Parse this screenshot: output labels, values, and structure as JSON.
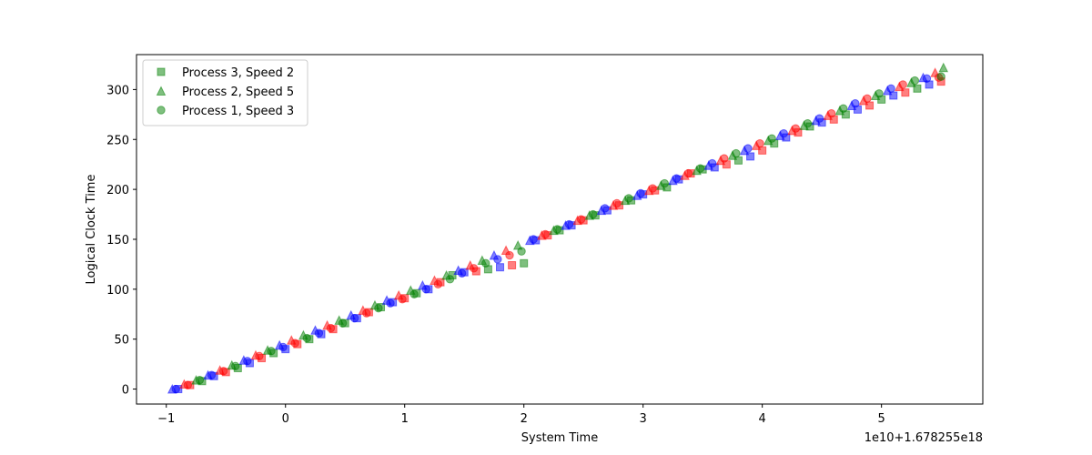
{
  "chart_data": {
    "type": "scatter",
    "title": "",
    "xlabel": "System Time",
    "ylabel": "Logical Clock Time",
    "x_offset_label": "1e10+1.678255e18",
    "xlim": [
      -1.25,
      5.85
    ],
    "ylim": [
      -15,
      335
    ],
    "xticks": [
      -1,
      0,
      1,
      2,
      3,
      4,
      5
    ],
    "xtick_labels": [
      "−1",
      "0",
      "1",
      "2",
      "3",
      "4",
      "5"
    ],
    "yticks": [
      0,
      50,
      100,
      150,
      200,
      250,
      300
    ],
    "ytick_labels": [
      "0",
      "50",
      "100",
      "150",
      "200",
      "250",
      "300"
    ],
    "grid": false,
    "legend_position": "upper-left",
    "series": [
      {
        "name": "Process 3, Speed 2",
        "marker": "square",
        "colors": [
          "#0000ff",
          "#ff0000",
          "#008000"
        ],
        "x": [
          -0.9,
          -0.8,
          -0.7,
          -0.6,
          -0.5,
          -0.4,
          -0.3,
          -0.2,
          -0.1,
          0.0,
          0.1,
          0.2,
          0.3,
          0.4,
          0.5,
          0.6,
          0.7,
          0.8,
          0.9,
          1.0,
          1.1,
          1.2,
          1.3,
          1.4,
          1.5,
          1.6,
          1.7,
          1.8,
          1.9,
          2.0,
          2.1,
          2.2,
          2.3,
          2.4,
          2.5,
          2.6,
          2.7,
          2.8,
          2.9,
          3.0,
          3.1,
          3.2,
          3.3,
          3.4,
          3.5,
          3.6,
          3.7,
          3.8,
          3.9,
          4.0,
          4.1,
          4.2,
          4.3,
          4.4,
          4.5,
          4.6,
          4.7,
          4.8,
          4.9,
          5.0,
          5.1,
          5.2,
          5.3,
          5.4,
          5.5
        ],
        "y": [
          0,
          4,
          8,
          13,
          17,
          21,
          26,
          31,
          36,
          40,
          45,
          50,
          55,
          60,
          66,
          71,
          77,
          82,
          87,
          91,
          96,
          100,
          107,
          114,
          117,
          118,
          120,
          122,
          124,
          126,
          149,
          154,
          159,
          164,
          169,
          174,
          179,
          184,
          189,
          195,
          199,
          202,
          210,
          216,
          220,
          222,
          225,
          229,
          233,
          239,
          246,
          252,
          257,
          263,
          267,
          270,
          275,
          280,
          284,
          290,
          294,
          297,
          301,
          305,
          308
        ]
      },
      {
        "name": "Process 2, Speed 5",
        "marker": "triangle",
        "colors": [
          "#0000ff",
          "#ff0000",
          "#008000"
        ],
        "x": [
          -0.95,
          -0.85,
          -0.75,
          -0.65,
          -0.55,
          -0.45,
          -0.35,
          -0.25,
          -0.15,
          -0.05,
          0.05,
          0.15,
          0.25,
          0.35,
          0.45,
          0.55,
          0.65,
          0.75,
          0.85,
          0.95,
          1.05,
          1.15,
          1.25,
          1.35,
          1.45,
          1.55,
          1.65,
          1.75,
          1.85,
          1.95,
          2.05,
          2.15,
          2.25,
          2.35,
          2.45,
          2.55,
          2.65,
          2.75,
          2.85,
          2.95,
          3.05,
          3.15,
          3.25,
          3.35,
          3.45,
          3.55,
          3.65,
          3.75,
          3.85,
          3.95,
          4.05,
          4.15,
          4.25,
          4.35,
          4.45,
          4.55,
          4.65,
          4.75,
          4.85,
          4.95,
          5.05,
          5.15,
          5.25,
          5.35,
          5.45,
          5.52
        ],
        "y": [
          0,
          5,
          9,
          14,
          19,
          24,
          29,
          34,
          39,
          44,
          49,
          54,
          59,
          64,
          69,
          74,
          79,
          84,
          89,
          94,
          99,
          104,
          109,
          114,
          119,
          124,
          129,
          134,
          139,
          144,
          149,
          154,
          159,
          164,
          169,
          174,
          179,
          184,
          189,
          194,
          199,
          204,
          209,
          214,
          219,
          224,
          229,
          234,
          239,
          244,
          249,
          254,
          259,
          264,
          269,
          274,
          279,
          284,
          289,
          294,
          299,
          303,
          307,
          312,
          317,
          322
        ]
      },
      {
        "name": "Process 1, Speed 3",
        "marker": "circle",
        "colors": [
          "#0000ff",
          "#ff0000",
          "#008000"
        ],
        "x": [
          -0.92,
          -0.82,
          -0.72,
          -0.62,
          -0.52,
          -0.42,
          -0.32,
          -0.22,
          -0.12,
          -0.02,
          0.08,
          0.18,
          0.28,
          0.38,
          0.48,
          0.58,
          0.68,
          0.78,
          0.88,
          0.98,
          1.08,
          1.18,
          1.28,
          1.38,
          1.48,
          1.58,
          1.68,
          1.78,
          1.88,
          1.98,
          2.08,
          2.18,
          2.28,
          2.38,
          2.48,
          2.58,
          2.68,
          2.78,
          2.88,
          2.98,
          3.08,
          3.18,
          3.28,
          3.38,
          3.48,
          3.58,
          3.68,
          3.78,
          3.88,
          3.98,
          4.08,
          4.18,
          4.28,
          4.38,
          4.48,
          4.58,
          4.68,
          4.78,
          4.88,
          4.98,
          5.08,
          5.18,
          5.28,
          5.38,
          5.48,
          5.5
        ],
        "y": [
          0,
          4,
          9,
          14,
          18,
          23,
          28,
          33,
          38,
          42,
          46,
          51,
          56,
          61,
          66,
          71,
          76,
          81,
          86,
          90,
          95,
          100,
          105,
          110,
          116,
          121,
          126,
          130,
          134,
          138,
          150,
          155,
          160,
          165,
          170,
          175,
          181,
          186,
          191,
          196,
          201,
          206,
          211,
          216,
          221,
          226,
          231,
          236,
          241,
          246,
          251,
          256,
          261,
          266,
          271,
          276,
          281,
          286,
          291,
          296,
          301,
          305,
          309,
          311,
          312,
          313
        ]
      }
    ]
  }
}
